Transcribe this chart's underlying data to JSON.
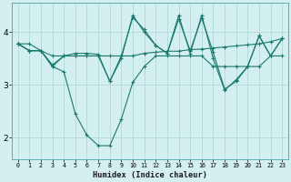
{
  "xlabel": "Humidex (Indice chaleur)",
  "bg_color": "#d4efef",
  "grid_color": "#b0d8d8",
  "line_color": "#1a7a6e",
  "xlim": [
    -0.5,
    23.5
  ],
  "ylim": [
    1.6,
    4.55
  ],
  "yticks": [
    2,
    3,
    4
  ],
  "xticks": [
    0,
    1,
    2,
    3,
    4,
    5,
    6,
    7,
    8,
    9,
    10,
    11,
    12,
    13,
    14,
    15,
    16,
    17,
    18,
    19,
    20,
    21,
    22,
    23
  ],
  "series": [
    {
      "x": [
        0,
        1,
        2,
        3,
        4,
        5,
        6,
        7,
        8,
        9,
        10,
        11,
        12,
        13,
        14,
        15,
        16,
        17,
        18,
        19,
        20,
        21,
        22,
        23
      ],
      "y": [
        3.78,
        3.78,
        3.65,
        3.35,
        3.25,
        2.45,
        2.05,
        1.85,
        1.85,
        2.35,
        3.05,
        3.35,
        3.55,
        3.55,
        3.55,
        3.55,
        3.55,
        3.35,
        3.35,
        3.35,
        3.35,
        3.35,
        3.55,
        3.55
      ]
    },
    {
      "x": [
        0,
        1,
        2,
        3,
        4,
        5,
        6,
        7,
        8,
        9,
        10,
        11,
        12,
        13,
        14,
        15,
        16,
        17,
        18,
        19,
        20,
        21,
        22,
        23
      ],
      "y": [
        3.78,
        3.65,
        3.65,
        3.55,
        3.55,
        3.55,
        3.55,
        3.55,
        3.55,
        3.55,
        3.55,
        3.6,
        3.62,
        3.64,
        3.64,
        3.67,
        3.68,
        3.7,
        3.72,
        3.74,
        3.76,
        3.78,
        3.82,
        3.88
      ]
    },
    {
      "x": [
        0,
        1,
        2,
        3,
        4,
        5,
        6,
        7,
        8,
        9,
        10,
        11,
        12,
        13,
        14,
        15,
        16,
        17,
        18,
        19,
        20,
        21,
        22,
        23
      ],
      "y": [
        3.78,
        3.65,
        3.65,
        3.35,
        3.55,
        3.6,
        3.6,
        3.58,
        3.07,
        3.55,
        4.28,
        4.05,
        3.75,
        3.6,
        4.25,
        3.65,
        4.27,
        3.62,
        2.92,
        3.07,
        3.35,
        3.93,
        3.55,
        3.88
      ]
    },
    {
      "x": [
        0,
        1,
        2,
        3,
        4,
        5,
        6,
        7,
        8,
        9,
        10,
        11,
        12,
        13,
        14,
        15,
        16,
        17,
        18,
        19,
        20,
        21,
        22,
        23
      ],
      "y": [
        3.78,
        3.65,
        3.65,
        3.38,
        3.55,
        3.55,
        3.55,
        3.55,
        3.07,
        3.5,
        4.32,
        4.0,
        3.75,
        3.6,
        4.32,
        3.6,
        4.32,
        3.5,
        2.9,
        3.1,
        3.35,
        3.93,
        3.55,
        3.88
      ]
    }
  ]
}
